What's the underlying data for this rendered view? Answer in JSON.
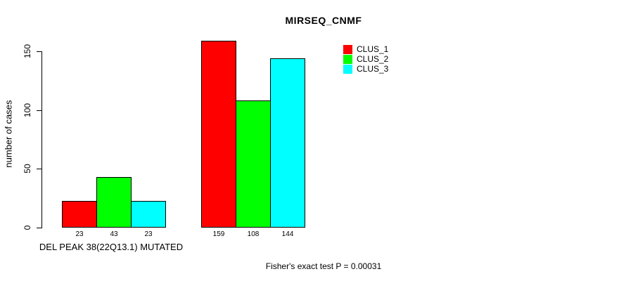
{
  "chart_data": {
    "type": "bar",
    "title": "MIRSEQ_CNMF",
    "ylabel": "number of cases",
    "xlabel": "DEL PEAK 38(22Q13.1) MUTATED",
    "footnote": "Fisher's exact test P = 0.00031",
    "categories": [
      "DEL PEAK 38(22Q13.1) MUTATED",
      ""
    ],
    "series": [
      {
        "name": "CLUS_1",
        "color": "#ff0000",
        "values": [
          23,
          159
        ]
      },
      {
        "name": "CLUS_2",
        "color": "#00ff00",
        "values": [
          43,
          108
        ]
      },
      {
        "name": "CLUS_3",
        "color": "#00ffff",
        "values": [
          23,
          144
        ]
      }
    ],
    "bar_value_labels": [
      [
        23,
        43,
        23
      ],
      [
        159,
        108,
        144
      ]
    ],
    "yticks": [
      0,
      50,
      100,
      150
    ],
    "ylim": [
      0,
      159
    ],
    "grid": false,
    "bar_border_color": "#000000",
    "background": "#ffffff",
    "legend": {
      "position": "top-right",
      "entries": [
        {
          "label": "CLUS_1",
          "color": "#ff0000"
        },
        {
          "label": "CLUS_2",
          "color": "#00ff00"
        },
        {
          "label": "CLUS_3",
          "color": "#00ffff"
        }
      ]
    }
  }
}
